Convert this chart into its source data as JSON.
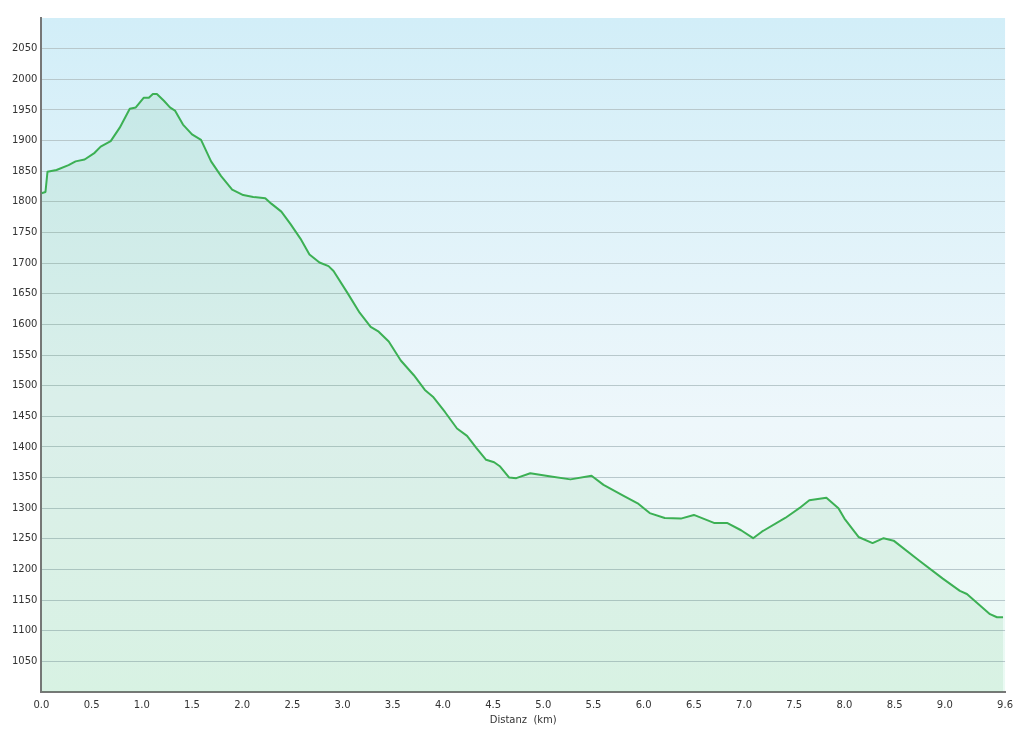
{
  "chart_data": {
    "type": "area",
    "xlabel": "Distanz  (km)",
    "xlim": [
      0,
      9.6
    ],
    "ylim": [
      1000,
      2100
    ],
    "xticks": [
      {
        "value": 0,
        "label": "0.0"
      },
      0.5,
      {
        "value": 1,
        "label": "1.0"
      },
      1.5,
      {
        "value": 2,
        "label": "2.0"
      },
      2.5,
      {
        "value": 3,
        "label": "3.0"
      },
      3.5,
      {
        "value": 4,
        "label": "4.0"
      },
      4.5,
      {
        "value": 5,
        "label": "5.0"
      },
      5.5,
      {
        "value": 6,
        "label": "6.0"
      },
      6.5,
      {
        "value": 7,
        "label": "7.0"
      },
      7.5,
      {
        "value": 8,
        "label": "8.0"
      },
      8.5,
      {
        "value": 9,
        "label": "9.0"
      },
      9.6
    ],
    "yticks": [
      1050,
      1100,
      1150,
      1200,
      1250,
      1300,
      1350,
      1400,
      1450,
      1500,
      1550,
      1600,
      1650,
      1700,
      1750,
      1800,
      1850,
      1900,
      1950,
      2000,
      2050
    ],
    "grid": "y",
    "legend": false,
    "marker": "none",
    "line_style": "solid",
    "series": [
      {
        "color": "#3cb054",
        "x": [
          0,
          0.04,
          0.06,
          0.15,
          0.27,
          0.34,
          0.43,
          0.53,
          0.59,
          0.69,
          0.78,
          0.88,
          0.94,
          1.02,
          1.07,
          1.11,
          1.15,
          1.22,
          1.28,
          1.33,
          1.41,
          1.5,
          1.59,
          1.69,
          1.79,
          1.9,
          2.01,
          2.11,
          2.23,
          2.29,
          2.39,
          2.48,
          2.58,
          2.67,
          2.77,
          2.86,
          2.91,
          3.05,
          3.17,
          3.28,
          3.36,
          3.46,
          3.58,
          3.71,
          3.82,
          3.9,
          4.02,
          4.14,
          4.24,
          4.33,
          4.43,
          4.51,
          4.57,
          4.66,
          4.73,
          4.87,
          5.06,
          5.27,
          5.48,
          5.6,
          5.8,
          5.94,
          6.06,
          6.21,
          6.37,
          6.5,
          6.7,
          6.83,
          6.97,
          7.09,
          7.18,
          7.41,
          7.55,
          7.65,
          7.82,
          7.94,
          8.0,
          8.14,
          8.28,
          8.39,
          8.49,
          8.74,
          8.98,
          9.15,
          9.22,
          9.45,
          9.52,
          9.58
        ],
        "values": [
          1814,
          1816,
          1849,
          1852,
          1860,
          1866,
          1869,
          1880,
          1890,
          1899,
          1921,
          1952,
          1954,
          1970,
          1970,
          1976,
          1976,
          1965,
          1954,
          1949,
          1926,
          1910,
          1901,
          1866,
          1842,
          1820,
          1811,
          1808,
          1806,
          1797,
          1784,
          1764,
          1740,
          1714,
          1701,
          1695,
          1687,
          1651,
          1619,
          1596,
          1588,
          1572,
          1541,
          1517,
          1493,
          1482,
          1457,
          1430,
          1418,
          1399,
          1379,
          1375,
          1368,
          1350,
          1349,
          1357,
          1352,
          1347,
          1353,
          1338,
          1320,
          1308,
          1292,
          1284,
          1283,
          1289,
          1276,
          1276,
          1264,
          1251,
          1262,
          1284,
          1300,
          1313,
          1317,
          1300,
          1283,
          1253,
          1243,
          1251,
          1247,
          1215,
          1185,
          1165,
          1160,
          1127,
          1122,
          1122
        ]
      }
    ]
  }
}
